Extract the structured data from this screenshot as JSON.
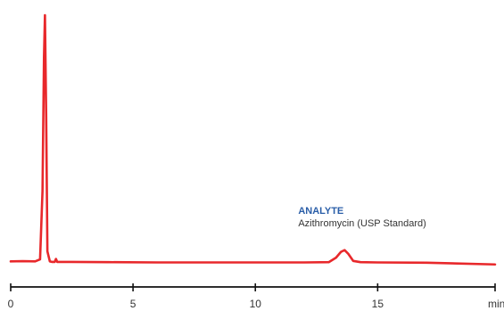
{
  "chart_data": {
    "type": "line",
    "title": "",
    "xlabel": "",
    "ylabel": "",
    "x_unit_label": "min",
    "xlim": [
      0,
      19.8
    ],
    "ylim": [
      0,
      1
    ],
    "x_ticks": [
      0,
      5,
      10,
      15
    ],
    "x_tick_labels": [
      "0",
      "5",
      "10",
      "15"
    ],
    "grid": false,
    "legend": "none",
    "colors": {
      "trace": "#e8282b",
      "axis": "#111111",
      "annotation_title": "#2a5ea8",
      "annotation_text": "#333333"
    },
    "series": [
      {
        "color": "#e8282b",
        "x": [
          0,
          0.5,
          1.0,
          1.2,
          1.3,
          1.36,
          1.4,
          1.45,
          1.5,
          1.6,
          1.7,
          1.8,
          1.85,
          1.9,
          2.0,
          2.5,
          4.0,
          6.0,
          8.0,
          10.0,
          12.0,
          13.0,
          13.3,
          13.5,
          13.65,
          13.8,
          14.0,
          14.3,
          15.0,
          17.0,
          19.8
        ],
        "y": [
          0.02,
          0.021,
          0.02,
          0.028,
          0.3,
          0.83,
          1.0,
          0.6,
          0.06,
          0.02,
          0.018,
          0.018,
          0.03,
          0.018,
          0.018,
          0.018,
          0.017,
          0.016,
          0.016,
          0.016,
          0.016,
          0.017,
          0.035,
          0.058,
          0.065,
          0.05,
          0.022,
          0.017,
          0.016,
          0.015,
          0.008
        ]
      }
    ],
    "annotations": [
      {
        "title": "ANALYTE",
        "text": "Azithromycin (USP Standard)",
        "x": 13.65
      }
    ]
  }
}
